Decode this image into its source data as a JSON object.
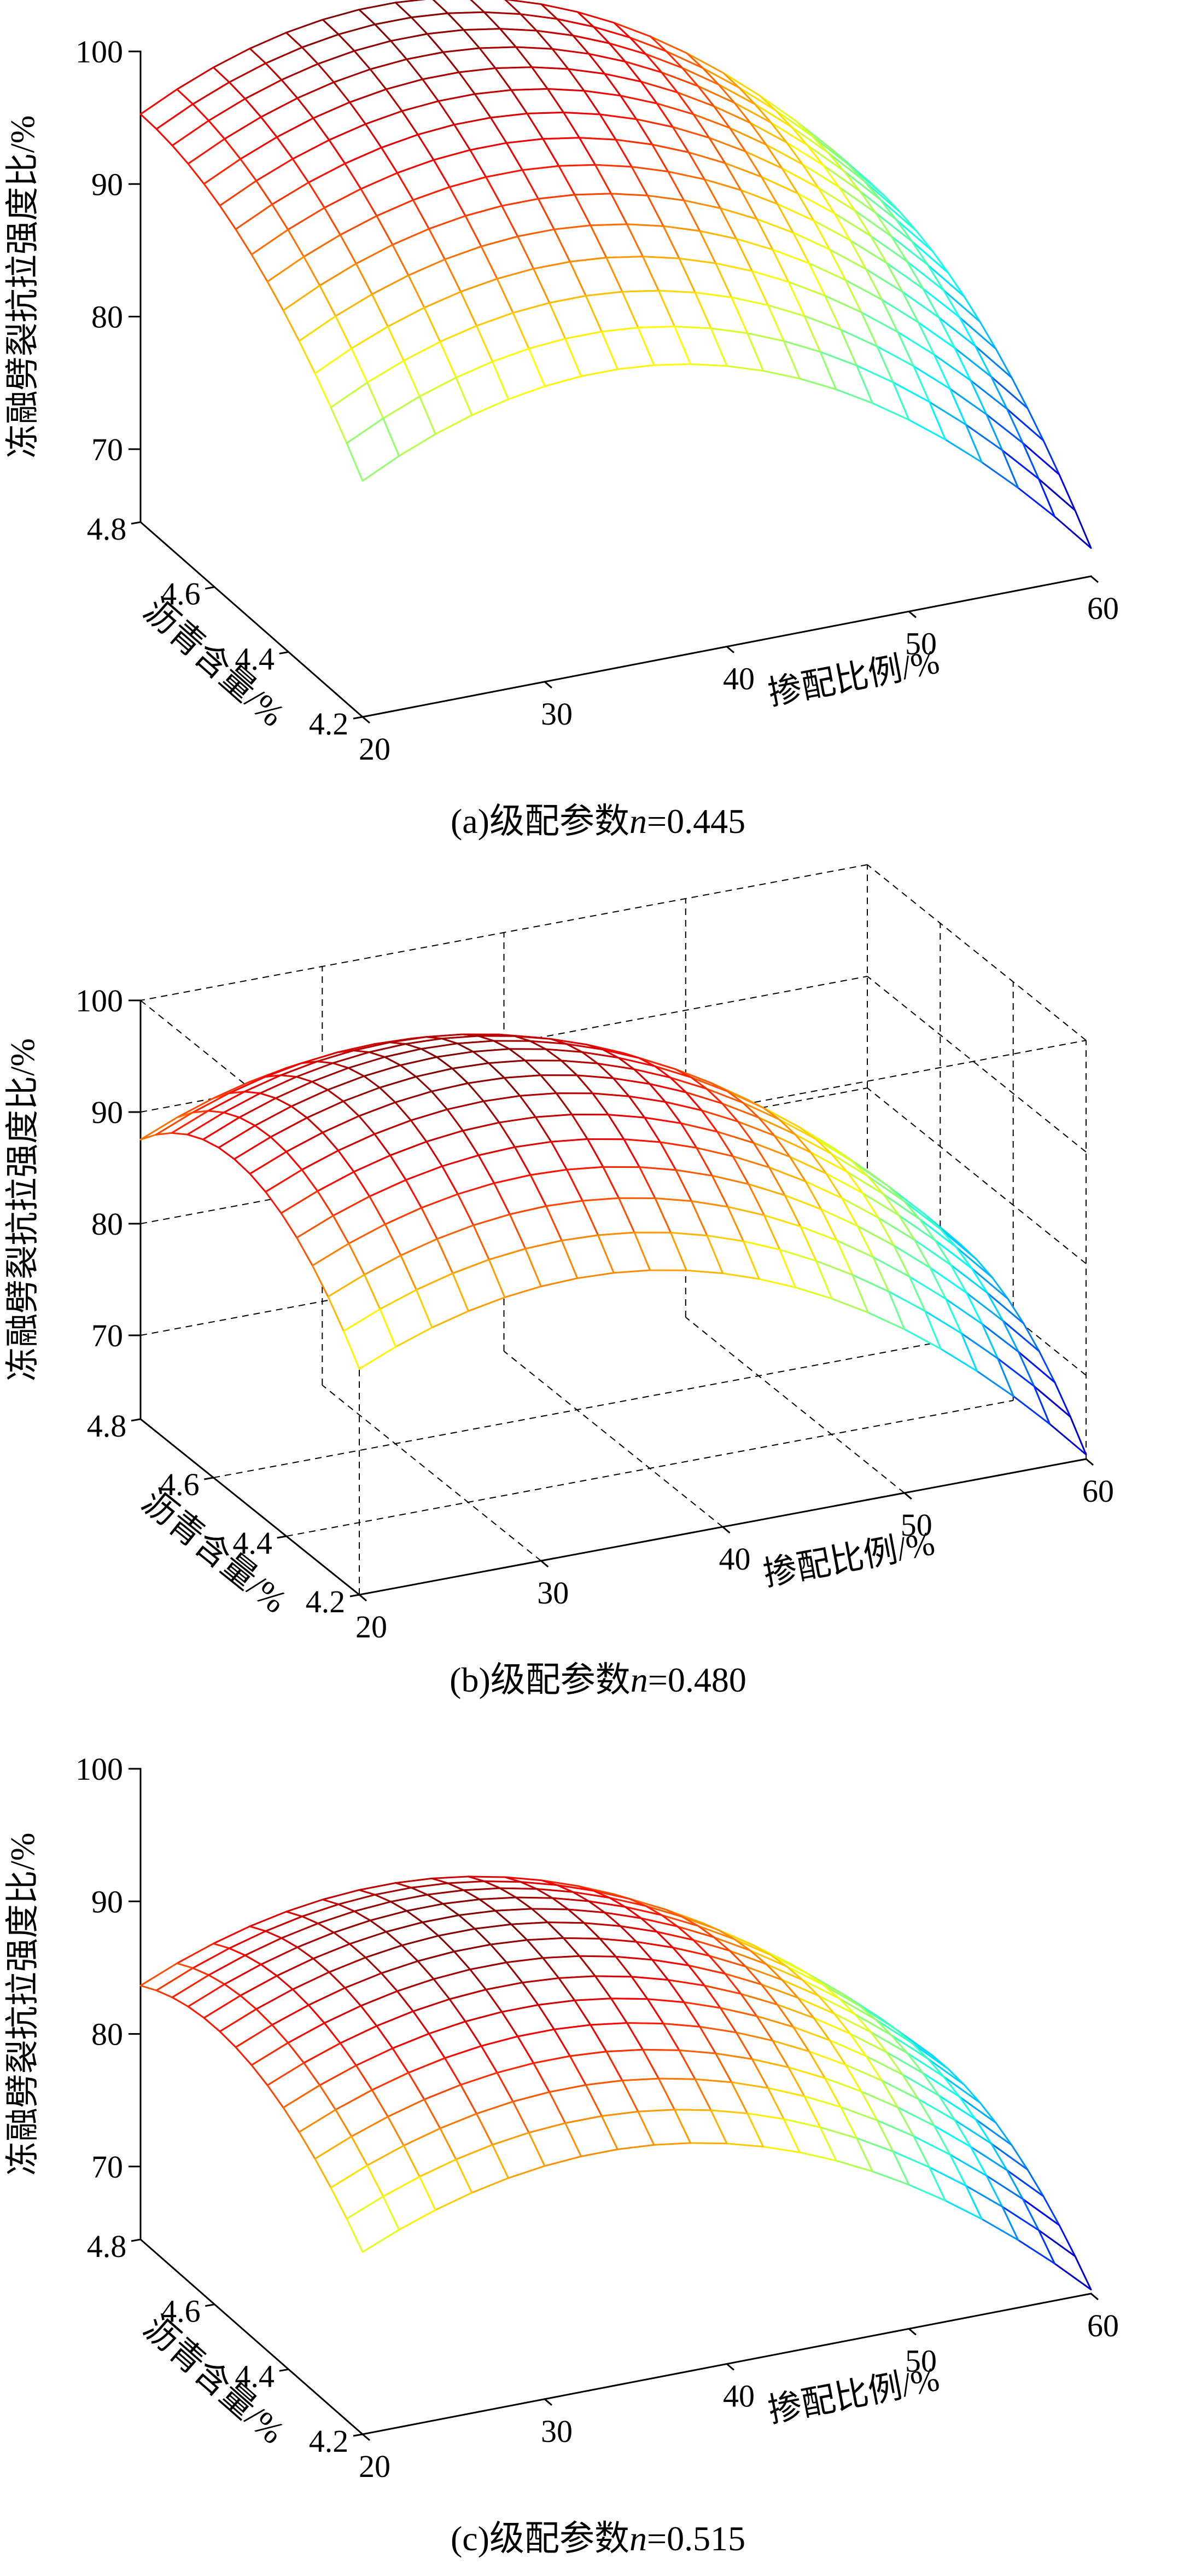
{
  "page": {
    "background": "#ffffff"
  },
  "figure": {
    "captions": [
      {
        "prefix": "(a)级配参数",
        "var": "n",
        "suffix": "=0.445"
      },
      {
        "prefix": "(b)级配参数",
        "var": "n",
        "suffix": "=0.480"
      },
      {
        "prefix": "(c)级配参数",
        "var": "n",
        "suffix": "=0.515"
      }
    ]
  },
  "chart_data": [
    {
      "type": "surface",
      "subtype": "3d-mesh",
      "title": "(a)级配参数n=0.445",
      "xlabel": "掺配比例/%",
      "ylabel": "沥青含量/%",
      "zlabel": "冻融劈裂抗拉强度比/%",
      "xlim": [
        20,
        60
      ],
      "ylim": [
        4.2,
        4.8
      ],
      "zlim": [
        70,
        100
      ],
      "xticks": [
        20,
        30,
        40,
        50,
        60
      ],
      "yticks": [
        4.2,
        4.4,
        4.6,
        4.8
      ],
      "zticks": [
        70,
        80,
        90,
        100
      ],
      "grid": false,
      "colormap": "jet",
      "view": {
        "azimuth": -37.5,
        "elevation": 30
      },
      "surface_model": {
        "form": "z = z0 - kx*(x-x0)^2 - ky*(y-y0)^2",
        "z0": 100,
        "x0": 33,
        "kx": 0.028,
        "y0": 4.8,
        "ky": 36
      },
      "sample_grid": {
        "x": [
          20,
          30,
          40,
          50,
          60
        ],
        "y": [
          4.2,
          4.4,
          4.6,
          4.8
        ],
        "z": [
          [
            82.3,
            86.8,
            85.7,
            78.9,
            66.6
          ],
          [
            89.5,
            94.0,
            92.9,
            86.2,
            73.8
          ],
          [
            93.8,
            98.3,
            97.2,
            90.5,
            78.1
          ],
          [
            95.3,
            99.7,
            98.6,
            91.9,
            79.6
          ]
        ]
      }
    },
    {
      "type": "surface",
      "subtype": "3d-mesh",
      "title": "(b)级配参数n=0.480",
      "xlabel": "掺配比例/%",
      "ylabel": "沥青含量/%",
      "zlabel": "冻融劈裂抗拉强度比/%",
      "xlim": [
        20,
        60
      ],
      "ylim": [
        4.2,
        4.8
      ],
      "zlim": [
        70,
        100
      ],
      "xticks": [
        20,
        30,
        40,
        50,
        60
      ],
      "yticks": [
        4.2,
        4.4,
        4.6,
        4.8
      ],
      "zticks": [
        70,
        80,
        90,
        100
      ],
      "grid": true,
      "colormap": "jet",
      "view": {
        "azimuth": -37.5,
        "elevation": 30
      },
      "surface_model": {
        "form": "z = z0 - kx*(x-x0)^2 - ky*(y-y0)^2",
        "z0": 97,
        "x0": 32,
        "kx": 0.031,
        "y0": 4.55,
        "ky": 80
      },
      "sample_grid": {
        "x": [
          20,
          30,
          40,
          50,
          60
        ],
        "y": [
          4.2,
          4.4,
          4.6,
          4.8
        ],
        "z": [
          [
            82.7,
            87.1,
            85.2,
            77.2,
            62.9
          ],
          [
            90.7,
            95.1,
            93.2,
            85.2,
            70.9
          ],
          [
            92.3,
            96.7,
            94.8,
            86.8,
            72.5
          ],
          [
            87.5,
            91.9,
            90.0,
            82.0,
            67.7
          ]
        ]
      }
    },
    {
      "type": "surface",
      "subtype": "3d-mesh",
      "title": "(c)级配参数n=0.515",
      "xlabel": "掺配比例/%",
      "ylabel": "沥青含量/%",
      "zlabel": "冻融劈裂抗拉强度比/%",
      "xlim": [
        20,
        60
      ],
      "ylim": [
        4.2,
        4.8
      ],
      "zlim": [
        70,
        100
      ],
      "xticks": [
        20,
        30,
        40,
        50,
        60
      ],
      "yticks": [
        4.2,
        4.4,
        4.6,
        4.8
      ],
      "zticks": [
        70,
        80,
        90,
        100
      ],
      "grid": false,
      "colormap": "jet",
      "view": {
        "azimuth": -37.5,
        "elevation": 30
      },
      "surface_model": {
        "form": "z = z0 - kx*(x-x0)^2 - ky*(y-y0)^2",
        "z0": 89.5,
        "x0": 33,
        "kx": 0.024,
        "y0": 4.6,
        "ky": 45
      },
      "sample_grid": {
        "x": [
          20,
          30,
          40,
          50,
          60
        ],
        "y": [
          4.2,
          4.4,
          4.6,
          4.8
        ],
        "z": [
          [
            78.2,
            82.1,
            81.1,
            75.4,
            64.8
          ],
          [
            83.6,
            87.5,
            86.5,
            80.8,
            70.2
          ],
          [
            85.4,
            89.3,
            88.3,
            82.6,
            72.0
          ],
          [
            83.6,
            87.5,
            86.5,
            80.8,
            70.2
          ]
        ]
      }
    }
  ]
}
